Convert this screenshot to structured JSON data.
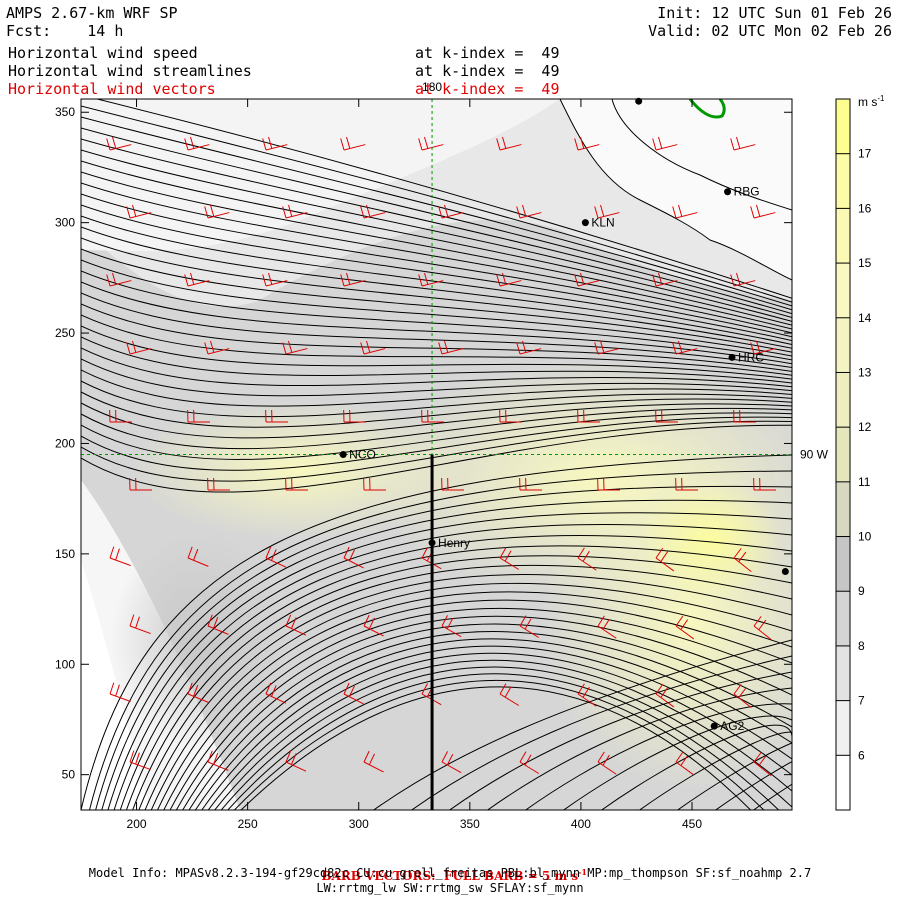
{
  "header": {
    "title": "AMPS 2.67-km WRF SP",
    "fcst": "Fcst:    14 h",
    "init": "Init: 12 UTC Sun 01 Feb 26",
    "valid": "Valid: 02 UTC Mon 02 Feb 26",
    "fields": [
      {
        "name": "Horizontal wind speed",
        "level": "at k-index =  49",
        "color": "#000000"
      },
      {
        "name": "Horizontal wind streamlines",
        "level": "at k-index =  49",
        "color": "#000000"
      },
      {
        "name": "Horizontal wind vectors",
        "level": "at k-index =  49",
        "color": "#e00000"
      }
    ]
  },
  "map": {
    "x_ticks": [
      200,
      250,
      300,
      350,
      400,
      450
    ],
    "y_ticks": [
      50,
      100,
      150,
      200,
      250,
      300,
      350
    ],
    "x_range": [
      175,
      495
    ],
    "y_range": [
      34,
      356
    ],
    "meridian_label": "180",
    "parallel_label": "90 W",
    "meridian_x": 333,
    "parallel_y": 195,
    "cross_section": {
      "x": 333,
      "y0": 34,
      "y1": 195
    },
    "stations": [
      {
        "name": "NCO",
        "x": 293,
        "y": 195
      },
      {
        "name": "Henry",
        "x": 333,
        "y": 155
      },
      {
        "name": "KLN",
        "x": 402,
        "y": 300
      },
      {
        "name": "RBG",
        "x": 466,
        "y": 314
      },
      {
        "name": "HRC",
        "x": 468,
        "y": 239
      },
      {
        "name": "AG2",
        "x": 460,
        "y": 72
      },
      {
        "name": "",
        "x": 426,
        "y": 355
      },
      {
        "name": "",
        "x": 492,
        "y": 142
      }
    ]
  },
  "colorbar": {
    "unit": "m s",
    "unit_exp": "-1",
    "levels": [
      6,
      7,
      8,
      9,
      10,
      11,
      12,
      13,
      14,
      15,
      16,
      17
    ],
    "colors": [
      "#ffffff",
      "#f0f0f0",
      "#e2e2e2",
      "#d4d4d4",
      "#c6c6c6",
      "#d8d8c0",
      "#e6e6bc",
      "#eeeec0",
      "#f4f4c2",
      "#f8f8c0",
      "#fafab4",
      "#fcfca8",
      "#fefe90"
    ]
  },
  "footer": {
    "barb_a": "BARB VECTORS:  FULL BARB = 5 m s",
    "barb_exp": "-1",
    "model_info": "Model Info: MPASv8.2.3-194-gf29cd82c CU:cu_grell_freitas PBL:bl_mynn MP:mp_thompson SF:sf_noahmp 2.7",
    "model_info2": "LW:rrtmg_lw SW:rrtmg_sw SFLAY:sf_mynn"
  }
}
